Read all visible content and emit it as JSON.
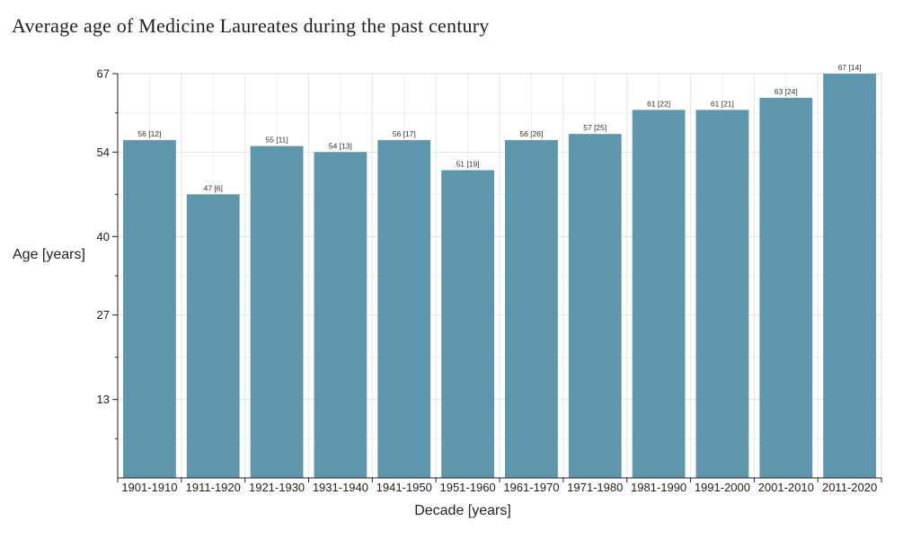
{
  "title": "Average age of Medicine Laureates during the past century",
  "chart_data": {
    "type": "bar",
    "title": "Average age of Medicine Laureates during the past century",
    "xlabel": "Decade [years]",
    "ylabel": "Age [years]",
    "ylim": [
      0,
      67
    ],
    "yticks": [
      13,
      27,
      40,
      54,
      67
    ],
    "grid": true,
    "bar_color": "#5e96ae",
    "categories": [
      "1901-1910",
      "1911-1920",
      "1921-1930",
      "1931-1940",
      "1941-1950",
      "1951-1960",
      "1961-1970",
      "1971-1980",
      "1981-1990",
      "1991-2000",
      "2001-2010",
      "2011-2020"
    ],
    "values": [
      56,
      47,
      55,
      54,
      56,
      51,
      56,
      57,
      61,
      61,
      63,
      67
    ],
    "data_labels": [
      "56 [12]",
      "47 [6]",
      "55 [11]",
      "54 [13]",
      "56 [17]",
      "51 [19]",
      "56 [26]",
      "57 [25]",
      "61 [22]",
      "61 [21]",
      "63 [24]",
      "67 [14]"
    ]
  }
}
